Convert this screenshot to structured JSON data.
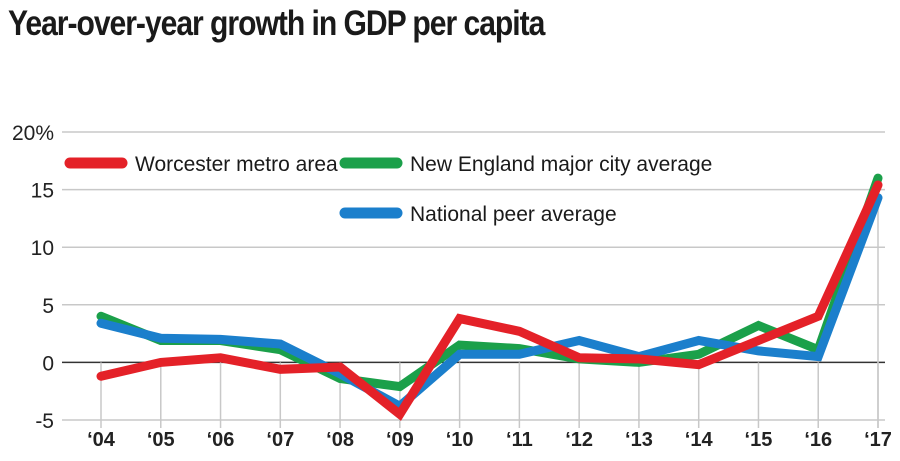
{
  "chart_data": {
    "type": "line",
    "title": "Year-over-year growth in GDP per capita",
    "xlabel": "",
    "ylabel": "",
    "x": [
      "'04",
      "'05",
      "'06",
      "'07",
      "'08",
      "'09",
      "'10",
      "'11",
      "'12",
      "'13",
      "'14",
      "'15",
      "'16",
      "'17"
    ],
    "ylim": [
      -5,
      20
    ],
    "yticks": [
      -5,
      0,
      5,
      10,
      15,
      20
    ],
    "ytick_labels": [
      "-5",
      "0",
      "5",
      "10",
      "15",
      "20%"
    ],
    "grid": true,
    "legend_position": "top-left",
    "series": [
      {
        "name": "New England major city average",
        "color": "#1ba04a",
        "values": [
          4.0,
          1.9,
          1.9,
          1.1,
          -1.4,
          -2.1,
          1.5,
          1.2,
          0.3,
          0.0,
          0.7,
          3.2,
          1.1,
          16.0
        ]
      },
      {
        "name": "National peer average",
        "color": "#1b7fcc",
        "values": [
          3.4,
          2.1,
          2.0,
          1.6,
          -1.0,
          -3.8,
          0.7,
          0.7,
          1.9,
          0.5,
          1.9,
          1.0,
          0.5,
          14.3
        ]
      },
      {
        "name": "Worcester metro area",
        "color": "#e42128",
        "values": [
          -1.2,
          0.0,
          0.4,
          -0.6,
          -0.4,
          -4.5,
          3.8,
          2.7,
          0.4,
          0.3,
          -0.2,
          1.9,
          4.0,
          15.4
        ]
      }
    ],
    "legend": [
      {
        "label": "Worcester metro area",
        "color": "#e42128"
      },
      {
        "label": "New England major city average",
        "color": "#1ba04a"
      },
      {
        "label": "National peer average",
        "color": "#1b7fcc"
      }
    ]
  }
}
